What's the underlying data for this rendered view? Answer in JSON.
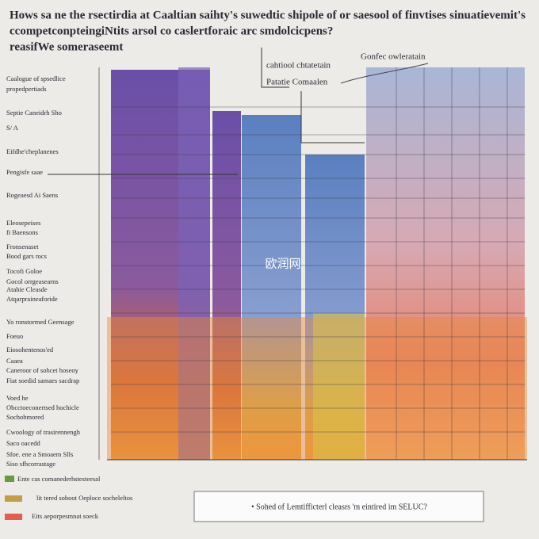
{
  "header": {
    "title_lines": [
      "Hows sa ne the rsectirdia at Caaltian saihty's suwedtic shipole of or saesool of finvtises sinuatievemit's",
      "ccompetconpteingiNtits arsol co caslertforaic arc smdolcicpens?",
      "reasifWe someraseemt"
    ]
  },
  "top_labels": [
    "cahtiool chtatetain",
    "Patatie Comaalen",
    "Gonfec owleratain"
  ],
  "left_labels": [
    "Caalogue of spsedlice",
    "propedpertiads",
    "Septie Caneidrh Sho",
    "S/ A",
    "Eifdhe'cheplanenes",
    "Pengisfe  saae",
    "Rogeaesd Ai Saens",
    "Eleosepeises",
    "fi Baensons",
    "Fronsenaset",
    "Bood gars rocs",
    "Tocofi Goloe",
    "Gocol orrgeasearns",
    "Atahie Cleasde",
    "Atqarpraineaforide",
    "Yo ronstormed Geensage",
    "Foeuo",
    "Eiosohentenos'ed",
    "Caaea",
    "Caneroor of sohcet hoseoy",
    "Fiat soedid samaes sacdrap",
    "Voed he",
    "Obcctoeconertsed hochicle",
    "Sochobmored",
    "Cwoology of trasirennengh",
    "Saco oacedd",
    "Sfoe. ene a Smoaem Slls",
    "Siso sfhcorrastage"
  ],
  "watermark": "欧润网",
  "caption": "• Sohed of Lemtifficterl cleasrs 'm eintired im SELUC?",
  "legend": [
    "Ente cas comanederhstesteesal",
    "lit tered sohoot Oeploce socheleltos",
    "Eits aeporpesmnat soeck"
  ]
}
